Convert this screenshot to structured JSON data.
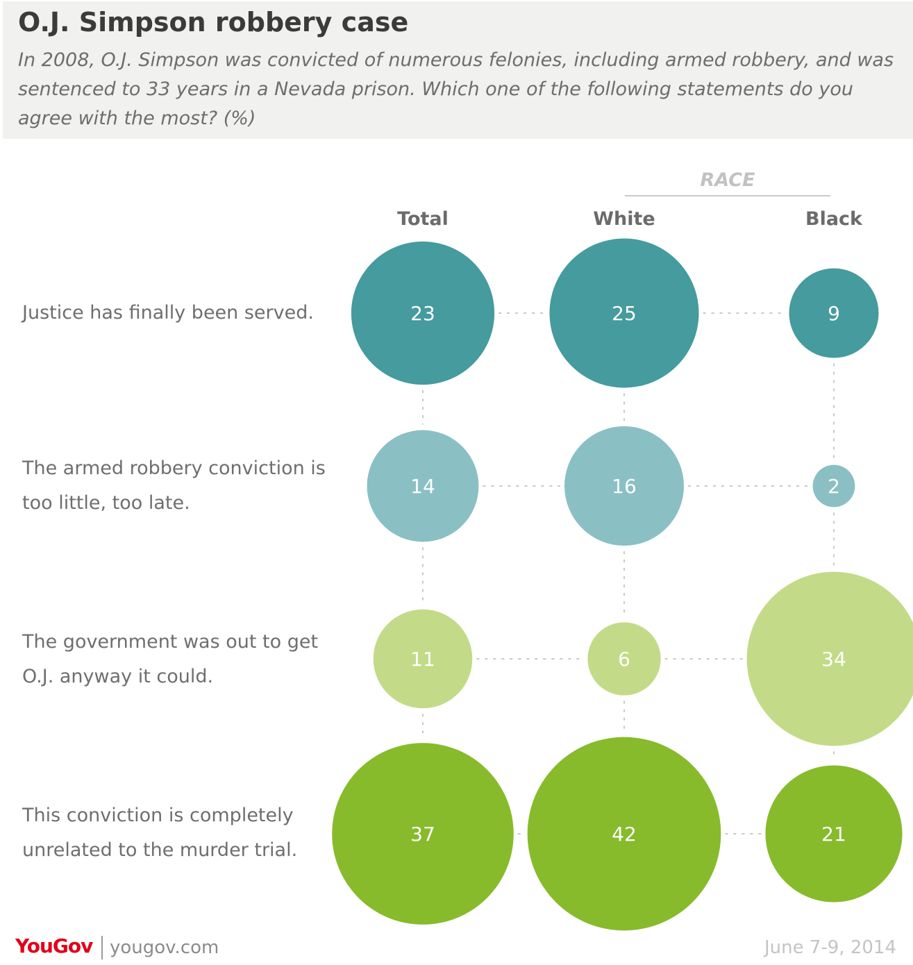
{
  "header": {
    "title": "O.J. Simpson robbery case",
    "subtitle": "In 2008, O.J. Simpson was convicted of numerous felonies, including armed robbery, and was sentenced to 33 years in a Nevada prison. Which one of the following statements do you agree with the most? (%)"
  },
  "group_label": "RACE",
  "chart_data": {
    "type": "bubble-matrix",
    "columns": [
      "Total",
      "White",
      "Black"
    ],
    "rows": [
      "Justice has finally been served.",
      "The armed robbery conviction is too little, too late.",
      "The government was out to get O.J. anyway it could.",
      "This conviction is completely unrelated to the murder trial."
    ],
    "values": [
      [
        23,
        25,
        9
      ],
      [
        14,
        16,
        2
      ],
      [
        11,
        6,
        34
      ],
      [
        37,
        42,
        21
      ]
    ],
    "row_colors": [
      "#459b9d",
      "#8ac0c4",
      "#c3db88",
      "#87bb2b"
    ]
  },
  "footer": {
    "logo": "YouGov",
    "url": "yougov.com",
    "date": "June 7-9, 2014"
  }
}
